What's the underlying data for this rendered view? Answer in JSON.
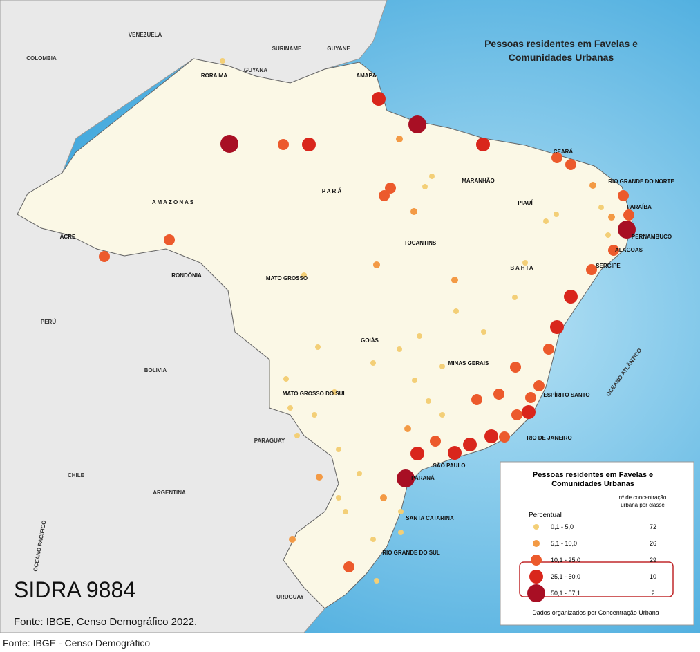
{
  "map": {
    "title_lines": [
      "Pessoas residentes em Favelas e",
      "Comunidades Urbanas"
    ],
    "places": [
      "VENEZUELA",
      "COLOMBIA",
      "SURINAME",
      "GUYANA",
      "GUYANE",
      "PERÚ",
      "BOLIVIA",
      "PARAGUAY",
      "CHILE",
      "ARGENTINA",
      "URUGUAY",
      "OCEANO PACÍFICO",
      "OCEANO ATLÂNTICO",
      "RORAIMA",
      "AMAPÁ",
      "A M A Z O N A S",
      "P A R Á",
      "ACRE",
      "RONDÔNIA",
      "MATO GROSSO",
      "TOCANTINS",
      "MARANHÃO",
      "PIAUÍ",
      "CEARÁ",
      "RIO GRANDE DO NORTE",
      "PARAÍBA",
      "PERNAMBUCO",
      "ALAGOAS",
      "SERGIPE",
      "B A H I A",
      "GOIÁS",
      "MINAS GERAIS",
      "ESPÍRITO SANTO",
      "RIO DE JANEIRO",
      "SÃO PAULO",
      "MATO GROSSO DO SUL",
      "PARANÁ",
      "SANTA CATARINA",
      "RIO GRANDE DO SUL"
    ],
    "legend": {
      "title_lines": [
        "Pessoas residentes em Favelas e",
        "Comunidades Urbanas"
      ],
      "count_header_lines": [
        "nº de concentração",
        "urbana por classe"
      ],
      "subtitle": "Percentual",
      "classes": [
        {
          "range": "0,1 - 5,0",
          "count": 72
        },
        {
          "range": "5,1 - 10,0",
          "count": 26
        },
        {
          "range": "10,1 - 25,0",
          "count": 29
        },
        {
          "range": "25,1 - 50,0",
          "count": 10
        },
        {
          "range": "50,1 - 57,1",
          "count": 2
        }
      ],
      "note": "Dados organizados por Concentração Urbana"
    },
    "watermark": "SIDRA 9884",
    "source": "Fonte: IBGE, Censo Demográfico 2022."
  },
  "caption": "Fonte: IBGE - Censo Demográfico"
}
